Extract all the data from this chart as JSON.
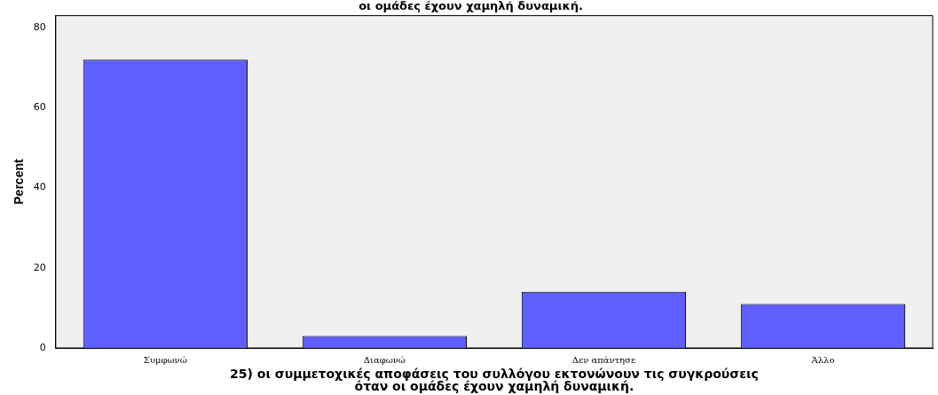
{
  "chart_data": {
    "type": "bar",
    "title": "οι ομάδες έχουν χαμηλή δυναμική.",
    "xlabel": "25) οι συμμετοχικές αποφάσεις του συλλόγου εκτονώνουν τις συγκρούσεις όταν οι ομάδες έχουν χαμηλή δυναμική.",
    "ylabel": "Percent",
    "categories": [
      "Συμφωνώ",
      "Διαφωνώ",
      "Δεν απάντησε",
      "Άλλο"
    ],
    "values": [
      72,
      3,
      14,
      11
    ],
    "color": "#5f5fff",
    "ylim": [
      0,
      83
    ],
    "yticks": [
      0,
      20,
      40,
      60,
      80
    ],
    "grid": false,
    "legend": false
  }
}
